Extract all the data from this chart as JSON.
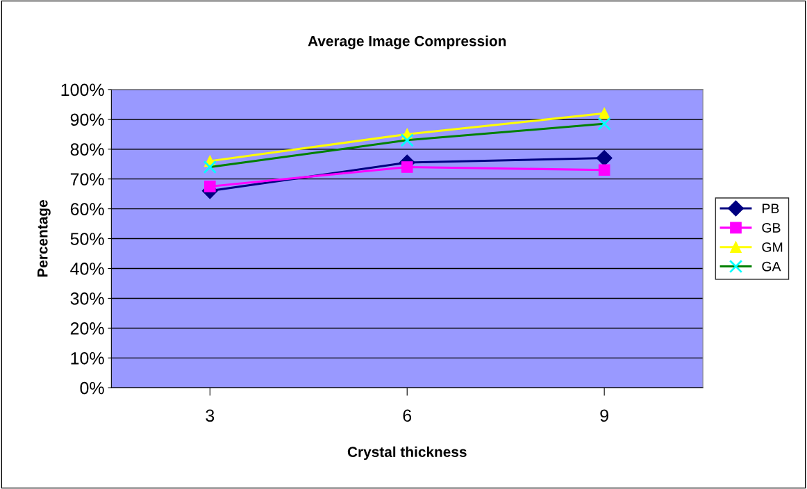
{
  "chart_data": {
    "type": "line",
    "title": "Average Image Compression",
    "xlabel": "Crystal thickness",
    "ylabel": "Percentage",
    "categories": [
      "3",
      "6",
      "9"
    ],
    "series": [
      {
        "name": "PB",
        "color": "#000080",
        "marker": "diamond",
        "values": [
          66,
          75.5,
          77
        ]
      },
      {
        "name": "GB",
        "color": "#ff00ff",
        "marker": "square",
        "values": [
          67.5,
          74,
          73
        ]
      },
      {
        "name": "GM",
        "color": "#ffff00",
        "marker": "triangle",
        "values": [
          76,
          85,
          92
        ]
      },
      {
        "name": "GA",
        "color": "#008000",
        "colors": [
          "#00ffff",
          "#00ffff",
          "#00ffff"
        ],
        "marker": "cross",
        "values": [
          74,
          83,
          88.5
        ]
      }
    ],
    "ylim": [
      0,
      100
    ],
    "yticks": [
      {
        "value": 0,
        "label": "0%"
      },
      {
        "value": 10,
        "label": "10%"
      },
      {
        "value": 20,
        "label": "20%"
      },
      {
        "value": 30,
        "label": "30%"
      },
      {
        "value": 40,
        "label": "40%"
      },
      {
        "value": 50,
        "label": "50%"
      },
      {
        "value": 60,
        "label": "60%"
      },
      {
        "value": 70,
        "label": "70%"
      },
      {
        "value": 80,
        "label": "80%"
      },
      {
        "value": 90,
        "label": "90%"
      },
      {
        "value": 100,
        "label": "100%"
      }
    ],
    "grid": "y",
    "legend": "right",
    "line_style": "solid"
  }
}
